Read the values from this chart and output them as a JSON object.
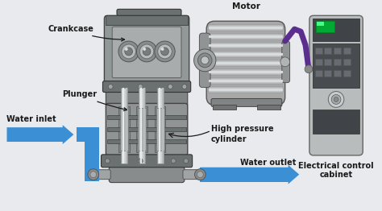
{
  "bg_color": "#e8eaed",
  "labels": {
    "crankcase": "Crankcase",
    "plunger": "Plunger",
    "water_inlet": "Water inlet",
    "motor": "Motor",
    "high_pressure_cylinder": "High pressure\ncylinder",
    "electrical_control_cabinet": "Electrical control\ncabinet",
    "water_outlet": "Water outlet"
  },
  "arrow_color": "#3b8fd4",
  "cable_color": "#5b2d8e",
  "pump_dark": "#6b7070",
  "pump_mid": "#929898",
  "pump_light": "#c0c4c4",
  "motor_dark": "#787878",
  "motor_mid": "#a8a8a8",
  "motor_light": "#d0d0d0",
  "cabinet_body": "#b0b4b8",
  "cabinet_dark": "#606468",
  "cabinet_panel": "#505458",
  "green_light": "#00bb44",
  "label_color": "#1a1a1a",
  "font_size": 6.5
}
